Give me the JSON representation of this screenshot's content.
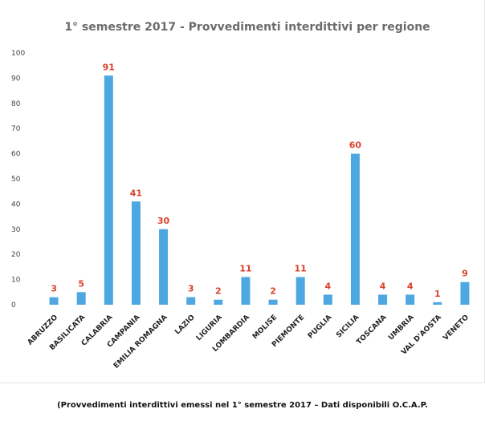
{
  "chart_data": {
    "type": "bar",
    "title": "1° semestre 2017 - Provvedimenti interdittivi per regione",
    "categories": [
      "ABRUZZO",
      "BASILICATA",
      "CALABRIA",
      "CAMPANIA",
      "EMILIA ROMAGNA",
      "LAZIO",
      "LIGURIA",
      "LOMBARDIA",
      "MOLISE",
      "PIEMONTE",
      "PUGLIA",
      "SICILIA",
      "TOSCANA",
      "UMBRIA",
      "VAL D'AOSTA",
      "VENETO"
    ],
    "values": [
      3,
      5,
      91,
      41,
      30,
      3,
      2,
      11,
      2,
      11,
      4,
      60,
      4,
      4,
      1,
      9
    ],
    "data_labels": [
      "3",
      "5",
      "91",
      "41",
      "30",
      "3",
      "2",
      "11",
      "2",
      "11",
      "4",
      "60",
      "4",
      "4",
      "1",
      "9"
    ],
    "yticks": [
      "0",
      "10",
      "20",
      "30",
      "40",
      "50",
      "60",
      "70",
      "80",
      "90",
      "100"
    ],
    "ylim": [
      0,
      100
    ],
    "xlabel": "",
    "ylabel": "",
    "grid": false,
    "legend": "none",
    "colors": {
      "bar": "#4ea7e0",
      "data_label": "#d9412b",
      "title": "#6b6b6b"
    }
  },
  "caption": "(Provvedimenti interdittivi emessi nel 1° semestre 2017 – Dati disponibili O.C.A.P."
}
